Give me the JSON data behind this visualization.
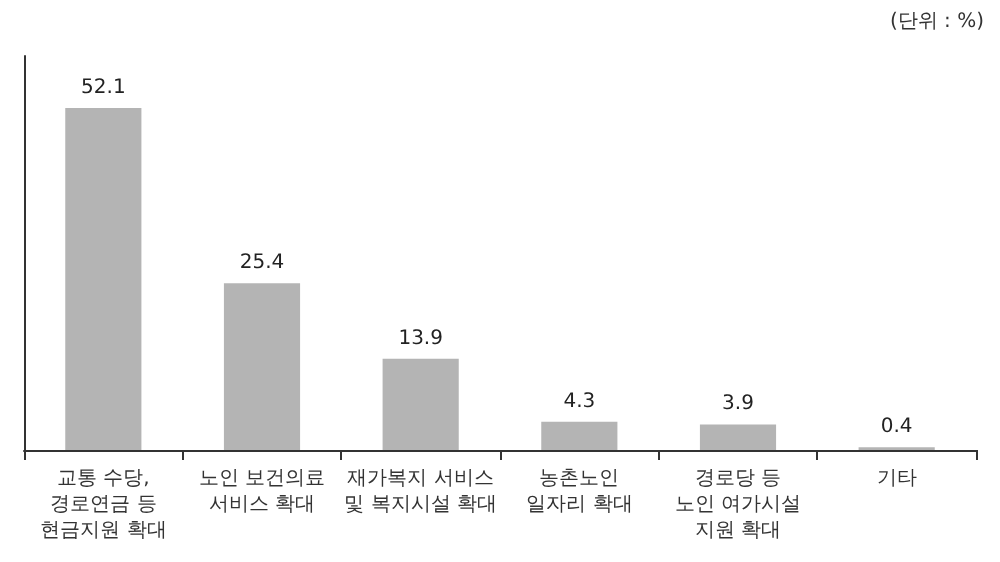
{
  "chart_data": {
    "type": "bar",
    "categories": [
      "교통 수당,\n경로연금 등\n현금지원 확대",
      "노인 보건의료\n서비스 확대",
      "재가복지 서비스\n및 복지시설 확대",
      "농촌노인\n일자리 확대",
      "경로당 등\n노인 여가시설\n지원 확대",
      "기타"
    ],
    "values": [
      52.1,
      25.4,
      13.9,
      4.3,
      3.9,
      0.4
    ],
    "color": "#b4b4b4",
    "data_labels": true,
    "annotations": [
      "(단위 : %)"
    ]
  }
}
